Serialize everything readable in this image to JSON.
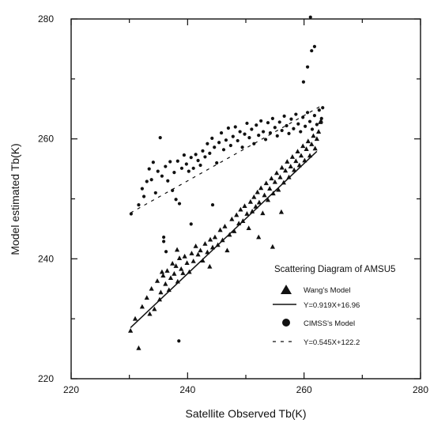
{
  "chart_data": {
    "type": "scatter",
    "title": "",
    "xlabel": "Satellite Observed Tb(K)",
    "ylabel": "Model estimated Tb(K)",
    "xlim": [
      220,
      280
    ],
    "ylim": [
      220,
      280
    ],
    "xticks": [
      220,
      240,
      260,
      280
    ],
    "yticks": [
      220,
      240,
      260,
      280
    ],
    "grid": false,
    "legend_title": "Scattering Diagram of AMSU5",
    "legend_position": "bottom-right",
    "series": [
      {
        "name": "Wang's Model",
        "marker": "triangle",
        "points": [
          [
            230.2,
            228.0
          ],
          [
            231.0,
            230.0
          ],
          [
            231.6,
            225.1
          ],
          [
            232.2,
            232.0
          ],
          [
            233.0,
            233.5
          ],
          [
            233.5,
            230.8
          ],
          [
            233.8,
            235.0
          ],
          [
            234.3,
            231.6
          ],
          [
            234.8,
            236.3
          ],
          [
            235.2,
            233.2
          ],
          [
            235.4,
            234.4
          ],
          [
            235.8,
            237.2
          ],
          [
            236.2,
            235.8
          ],
          [
            236.5,
            238.0
          ],
          [
            236.8,
            234.8
          ],
          [
            237.1,
            236.8
          ],
          [
            237.4,
            239.2
          ],
          [
            237.7,
            237.5
          ],
          [
            238.0,
            238.8
          ],
          [
            238.3,
            236.2
          ],
          [
            238.6,
            240.1
          ],
          [
            238.9,
            238.3
          ],
          [
            239.2,
            237.6
          ],
          [
            239.5,
            240.4
          ],
          [
            239.9,
            239.3
          ],
          [
            240.3,
            237.8
          ],
          [
            240.7,
            240.9
          ],
          [
            241.0,
            239.6
          ],
          [
            241.4,
            242.1
          ],
          [
            241.8,
            240.7
          ],
          [
            242.2,
            241.4
          ],
          [
            242.6,
            239.7
          ],
          [
            243.0,
            242.5
          ],
          [
            243.4,
            241.1
          ],
          [
            243.9,
            243.2
          ],
          [
            244.3,
            241.9
          ],
          [
            244.7,
            243.6
          ],
          [
            245.2,
            242.3
          ],
          [
            245.6,
            244.8
          ],
          [
            246.0,
            243.1
          ],
          [
            246.4,
            245.4
          ],
          [
            246.8,
            241.4
          ],
          [
            247.2,
            244.0
          ],
          [
            247.6,
            246.6
          ],
          [
            248.0,
            244.6
          ],
          [
            248.4,
            247.3
          ],
          [
            248.8,
            245.9
          ],
          [
            249.1,
            248.2
          ],
          [
            249.5,
            246.3
          ],
          [
            249.8,
            248.8
          ],
          [
            250.2,
            247.5
          ],
          [
            250.5,
            245.1
          ],
          [
            250.8,
            249.5
          ],
          [
            251.1,
            247.9
          ],
          [
            251.4,
            250.3
          ],
          [
            251.7,
            248.7
          ],
          [
            252.0,
            251.1
          ],
          [
            252.3,
            249.4
          ],
          [
            252.6,
            251.8
          ],
          [
            252.9,
            247.6
          ],
          [
            253.2,
            250.6
          ],
          [
            253.5,
            252.6
          ],
          [
            253.8,
            249.8
          ],
          [
            254.1,
            251.7
          ],
          [
            254.4,
            253.4
          ],
          [
            254.7,
            250.9
          ],
          [
            255.0,
            252.8
          ],
          [
            255.3,
            254.3
          ],
          [
            255.6,
            251.5
          ],
          [
            255.9,
            253.6
          ],
          [
            256.2,
            255.2
          ],
          [
            256.5,
            252.7
          ],
          [
            256.8,
            254.7
          ],
          [
            257.1,
            256.2
          ],
          [
            257.4,
            253.6
          ],
          [
            257.7,
            255.4
          ],
          [
            258.0,
            257.0
          ],
          [
            258.3,
            254.8
          ],
          [
            258.6,
            256.3
          ],
          [
            258.9,
            257.9
          ],
          [
            259.2,
            255.6
          ],
          [
            259.5,
            257.2
          ],
          [
            259.8,
            258.8
          ],
          [
            260.1,
            256.4
          ],
          [
            260.4,
            258.3
          ],
          [
            260.7,
            259.6
          ],
          [
            261.0,
            257.2
          ],
          [
            261.3,
            259.1
          ],
          [
            261.6,
            260.5
          ],
          [
            261.9,
            258.4
          ],
          [
            262.2,
            260.0
          ],
          [
            262.5,
            261.2
          ],
          [
            262.8,
            262.8
          ],
          [
            262.9,
            263.0
          ],
          [
            254.6,
            242.0
          ],
          [
            252.2,
            243.6
          ],
          [
            256.1,
            247.8
          ],
          [
            243.8,
            238.7
          ],
          [
            235.6,
            237.8
          ],
          [
            238.2,
            241.5
          ]
        ]
      },
      {
        "name": "Y=0.919X+16.96",
        "marker": "solid-line",
        "slope": 0.919,
        "intercept": 16.96,
        "x_range": [
          230.2,
          262.2
        ]
      },
      {
        "name": "CIMSS's Model",
        "marker": "circle",
        "points": [
          [
            230.3,
            247.5
          ],
          [
            231.6,
            249.0
          ],
          [
            232.2,
            251.7
          ],
          [
            232.5,
            250.4
          ],
          [
            233.0,
            252.9
          ],
          [
            233.4,
            255.0
          ],
          [
            233.8,
            253.2
          ],
          [
            234.1,
            256.1
          ],
          [
            234.5,
            251.0
          ],
          [
            234.9,
            254.6
          ],
          [
            235.3,
            260.2
          ],
          [
            235.6,
            253.8
          ],
          [
            235.9,
            242.9
          ],
          [
            236.2,
            255.4
          ],
          [
            236.6,
            253.0
          ],
          [
            237.0,
            256.2
          ],
          [
            237.4,
            251.4
          ],
          [
            237.7,
            254.4
          ],
          [
            238.0,
            249.9
          ],
          [
            238.3,
            256.3
          ],
          [
            238.6,
            249.2
          ],
          [
            239.0,
            255.1
          ],
          [
            239.4,
            257.3
          ],
          [
            239.8,
            255.8
          ],
          [
            240.2,
            254.6
          ],
          [
            240.6,
            256.9
          ],
          [
            241.0,
            255.1
          ],
          [
            241.4,
            257.4
          ],
          [
            241.8,
            256.4
          ],
          [
            242.2,
            255.6
          ],
          [
            242.6,
            258.0
          ],
          [
            243.0,
            257.0
          ],
          [
            243.4,
            259.2
          ],
          [
            243.8,
            257.6
          ],
          [
            244.2,
            260.1
          ],
          [
            244.6,
            258.6
          ],
          [
            245.0,
            256.0
          ],
          [
            245.4,
            259.4
          ],
          [
            245.8,
            261.0
          ],
          [
            246.2,
            258.2
          ],
          [
            246.6,
            259.8
          ],
          [
            247.0,
            261.8
          ],
          [
            247.4,
            258.9
          ],
          [
            247.8,
            260.4
          ],
          [
            248.2,
            262.0
          ],
          [
            248.6,
            259.7
          ],
          [
            249.0,
            261.2
          ],
          [
            249.4,
            258.6
          ],
          [
            249.8,
            260.8
          ],
          [
            250.2,
            262.6
          ],
          [
            250.6,
            260.2
          ],
          [
            251.0,
            261.6
          ],
          [
            251.4,
            259.2
          ],
          [
            251.8,
            262.3
          ],
          [
            252.2,
            260.6
          ],
          [
            252.6,
            263.0
          ],
          [
            253.0,
            261.2
          ],
          [
            253.4,
            259.9
          ],
          [
            253.8,
            262.7
          ],
          [
            254.2,
            261.0
          ],
          [
            254.6,
            263.4
          ],
          [
            255.0,
            261.9
          ],
          [
            255.4,
            260.5
          ],
          [
            255.8,
            262.8
          ],
          [
            256.2,
            261.4
          ],
          [
            256.6,
            263.8
          ],
          [
            257.0,
            262.2
          ],
          [
            257.4,
            260.9
          ],
          [
            257.8,
            263.3
          ],
          [
            258.2,
            261.7
          ],
          [
            258.6,
            264.1
          ],
          [
            259.0,
            262.5
          ],
          [
            259.4,
            261.2
          ],
          [
            259.8,
            263.6
          ],
          [
            260.2,
            262.1
          ],
          [
            260.6,
            264.4
          ],
          [
            261.0,
            262.9
          ],
          [
            261.4,
            261.6
          ],
          [
            261.8,
            263.9
          ],
          [
            262.2,
            262.4
          ],
          [
            262.6,
            264.8
          ],
          [
            263.0,
            263.4
          ],
          [
            263.2,
            265.2
          ],
          [
            259.9,
            269.5
          ],
          [
            260.6,
            272.0
          ],
          [
            261.3,
            274.7
          ],
          [
            261.8,
            275.4
          ],
          [
            261.1,
            280.3
          ],
          [
            240.6,
            245.8
          ],
          [
            244.3,
            249.0
          ],
          [
            238.5,
            226.3
          ],
          [
            235.9,
            243.6
          ],
          [
            236.3,
            241.2
          ]
        ]
      },
      {
        "name": "Y=0.545X+122.2",
        "marker": "dashed-line",
        "slope": 0.545,
        "intercept": 122.2,
        "x_range": [
          230.2,
          262.8
        ]
      }
    ]
  }
}
